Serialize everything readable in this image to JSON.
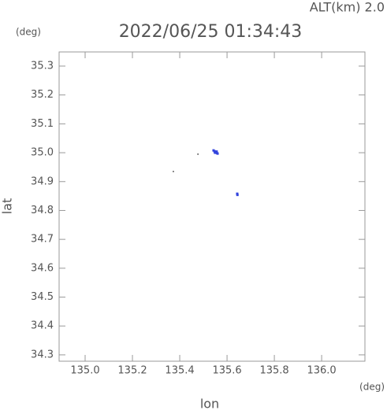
{
  "chart_data": {
    "type": "scatter",
    "title": "2022/06/25 01:34:43",
    "annotation": "ALT(km) 2.0",
    "y_unit": "(deg)",
    "x_unit": "(deg)",
    "x_label": "lon",
    "y_label": "lat",
    "xlim": [
      134.89,
      136.183
    ],
    "ylim": [
      34.278,
      35.349
    ],
    "xticks": [
      {
        "value": 135,
        "label": "135.0"
      },
      135.2,
      135.4,
      135.6,
      135.8,
      {
        "value": 136,
        "label": "136.0"
      }
    ],
    "yticks": [
      34.3,
      34.4,
      34.5,
      34.6,
      34.7,
      34.8,
      34.9,
      {
        "value": 35,
        "label": "35.0"
      },
      35.1,
      35.2,
      35.3
    ],
    "series": [
      {
        "color": "#3344dd",
        "x": [
          135.543,
          135.547,
          135.551,
          135.554,
          135.557,
          135.56,
          135.549,
          135.556,
          135.643,
          135.644
        ],
        "values": [
          35.008,
          35.005,
          35.003,
          35.001,
          34.999,
          34.997,
          35.0,
          35.004,
          34.858,
          34.854
        ]
      },
      {
        "color": "#333333",
        "x": [
          135.373,
          135.477
        ],
        "values": [
          34.935,
          34.995
        ]
      }
    ]
  }
}
